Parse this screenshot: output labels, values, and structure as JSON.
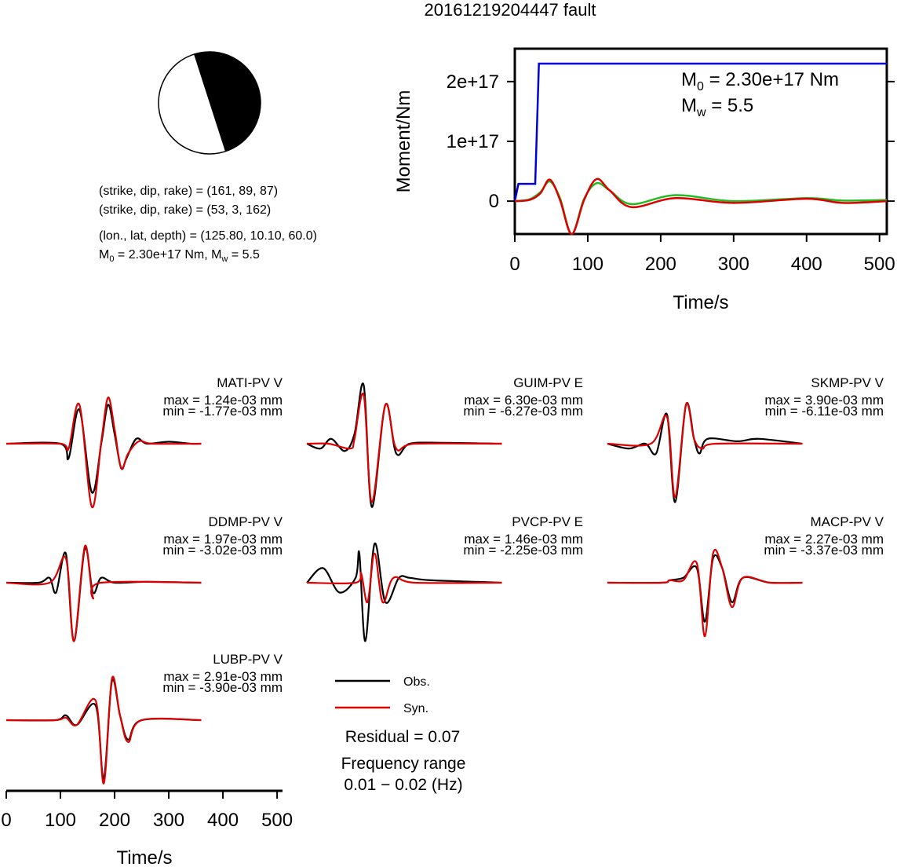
{
  "title": "20161219204447 fault",
  "focal": {
    "line1": "(strike, dip, rake) = (161, 89, 87)",
    "line2": "(strike, dip, rake) = (53, 3, 162)",
    "line3": "(lon., lat, depth) = (125.80, 10.10, 60.0)",
    "m0_prefix": "M",
    "m0_sub": "0",
    "m0_value": " = 2.30e+17 Nm, M",
    "mw_sub": "w",
    "mw_value": " = 5.5"
  },
  "moment_chart": {
    "ylabel": "Moment/Nm",
    "xlabel": "Time/s",
    "m0_prefix": "M",
    "m0_sub": "0",
    "m0_value": " = 2.30e+17 Nm",
    "mw_prefix": "M",
    "mw_sub": "w",
    "mw_value": " = 5.5",
    "yticks": [
      "2e+17",
      "1e+17",
      "0"
    ],
    "xticks": [
      "0",
      "100",
      "200",
      "300",
      "400",
      "500"
    ]
  },
  "chart_data": [
    {
      "type": "line",
      "x_range": [
        0,
        510
      ],
      "y_range": [
        -5.5e+16,
        2.55e+17
      ],
      "series": [
        {
          "color": "#0000dd",
          "x": [
            0,
            5,
            28,
            33,
            510
          ],
          "values": [
            0,
            2.9e+16,
            2.9e+16,
            2.3e+17,
            2.3e+17
          ]
        },
        {
          "color": "#22bb22",
          "x": [
            0,
            20,
            35,
            48,
            62,
            78,
            95,
            112,
            130,
            160,
            220,
            300,
            400,
            450,
            510
          ],
          "values": [
            0,
            3000000000000000.0,
            1.5e+16,
            3.3e+16,
            5000000000000000.0,
            -5.5e+16,
            4000000000000000.0,
            3e+16,
            1.8e+16,
            -5000000000000000.0,
            1e+16,
            0.0,
            5000000000000000.0,
            1000000000000000.0,
            2000000000000000.0
          ]
        },
        {
          "color": "#dd0000",
          "x": [
            0,
            20,
            35,
            48,
            62,
            78,
            95,
            112,
            130,
            160,
            220,
            300,
            400,
            450,
            510
          ],
          "values": [
            0,
            2000000000000000.0,
            1.3e+16,
            3.6e+16,
            2000000000000000.0,
            -5.5e+16,
            2000000000000000.0,
            3.7e+16,
            1.8e+16,
            -1e+16,
            5000000000000000.0,
            -3000000000000000.0,
            4000000000000000.0,
            -3000000000000000.0,
            0.0
          ]
        }
      ]
    },
    {
      "type": "line",
      "xlabel": "Time/s",
      "x_range": [
        0,
        510
      ],
      "xticks": [
        "0",
        "100",
        "200",
        "300",
        "400",
        "500"
      ],
      "stations": [
        {
          "name": "MATI-PV V",
          "max": "max = 1.24e-03 mm",
          "min": "min = -1.77e-03 mm",
          "obs": [
            [
              0,
              0
            ],
            [
              100,
              0
            ],
            [
              115,
              -0.3
            ],
            [
              135,
              0.7
            ],
            [
              158,
              -1.0
            ],
            [
              176,
              0.05
            ],
            [
              188,
              0.8
            ],
            [
              200,
              0.2
            ],
            [
              212,
              -0.5
            ],
            [
              222,
              -0.3
            ],
            [
              240,
              0.1
            ],
            [
              260,
              0
            ],
            [
              300,
              0.04
            ],
            [
              340,
              0
            ],
            [
              360,
              0
            ]
          ],
          "syn": [
            [
              0,
              0
            ],
            [
              100,
              0
            ],
            [
              115,
              -0.1
            ],
            [
              135,
              0.8
            ],
            [
              158,
              -1.3
            ],
            [
              176,
              0.1
            ],
            [
              188,
              0.95
            ],
            [
              200,
              0.3
            ],
            [
              212,
              -0.5
            ],
            [
              225,
              -0.2
            ],
            [
              245,
              0.05
            ],
            [
              270,
              0
            ],
            [
              360,
              0
            ]
          ]
        },
        {
          "name": "GUIM-PV E",
          "max": "max = 6.30e-03 mm",
          "min": "min = -6.27e-03 mm",
          "obs": [
            [
              0,
              0
            ],
            [
              25,
              -0.1
            ],
            [
              45,
              0.1
            ],
            [
              70,
              -0.15
            ],
            [
              88,
              0.2
            ],
            [
              105,
              1.2
            ],
            [
              120,
              -1.3
            ],
            [
              145,
              0.8
            ],
            [
              165,
              -0.2
            ],
            [
              190,
              0
            ],
            [
              250,
              0.02
            ],
            [
              360,
              0
            ]
          ],
          "syn": [
            [
              0,
              0
            ],
            [
              40,
              0
            ],
            [
              80,
              -0.1
            ],
            [
              88,
              0.1
            ],
            [
              105,
              1.0
            ],
            [
              120,
              -1.2
            ],
            [
              145,
              0.8
            ],
            [
              165,
              -0.1
            ],
            [
              200,
              0
            ],
            [
              360,
              0
            ]
          ]
        },
        {
          "name": "SKMP-PV V",
          "max": "max = 3.90e-03 mm",
          "min": "min = -6.11e-03 mm",
          "obs": [
            [
              0,
              0
            ],
            [
              40,
              -0.1
            ],
            [
              70,
              0
            ],
            [
              90,
              -0.2
            ],
            [
              110,
              0.6
            ],
            [
              125,
              -1.2
            ],
            [
              145,
              0.8
            ],
            [
              160,
              0.1
            ],
            [
              170,
              -0.2
            ],
            [
              185,
              0.1
            ],
            [
              240,
              0.05
            ],
            [
              280,
              0.1
            ],
            [
              360,
              0
            ]
          ],
          "syn": [
            [
              0,
              0
            ],
            [
              80,
              0
            ],
            [
              110,
              0.55
            ],
            [
              125,
              -1.1
            ],
            [
              145,
              0.8
            ],
            [
              160,
              0.1
            ],
            [
              175,
              -0.1
            ],
            [
              200,
              0
            ],
            [
              360,
              0
            ]
          ]
        },
        {
          "name": "DDMP-PV V",
          "max": "max = 1.97e-03 mm",
          "min": "min = -3.02e-03 mm",
          "obs": [
            [
              0,
              0
            ],
            [
              60,
              0
            ],
            [
              80,
              0.1
            ],
            [
              92,
              -0.2
            ],
            [
              110,
              0.6
            ],
            [
              125,
              -1.2
            ],
            [
              145,
              0.7
            ],
            [
              160,
              -0.2
            ],
            [
              175,
              0.1
            ],
            [
              200,
              0
            ],
            [
              260,
              0.02
            ],
            [
              360,
              0
            ]
          ],
          "syn": [
            [
              0,
              0
            ],
            [
              80,
              0
            ],
            [
              110,
              0.5
            ],
            [
              125,
              -1.2
            ],
            [
              145,
              0.75
            ],
            [
              160,
              -0.3
            ],
            [
              175,
              0
            ],
            [
              360,
              0
            ]
          ]
        },
        {
          "name": "PVCP-PV E",
          "max": "max = 1.46e-03 mm",
          "min": "min = -2.25e-03 mm",
          "obs": [
            [
              0,
              0
            ],
            [
              30,
              0.3
            ],
            [
              60,
              -0.2
            ],
            [
              90,
              0.1
            ],
            [
              97,
              0.6
            ],
            [
              108,
              -1.2
            ],
            [
              125,
              0.8
            ],
            [
              145,
              -0.4
            ],
            [
              170,
              0.1
            ],
            [
              190,
              0.1
            ],
            [
              230,
              0.05
            ],
            [
              360,
              0
            ]
          ],
          "syn": [
            [
              0,
              0
            ],
            [
              90,
              0
            ],
            [
              100,
              0.2
            ],
            [
              112,
              -0.4
            ],
            [
              125,
              0.6
            ],
            [
              140,
              -0.4
            ],
            [
              160,
              0.1
            ],
            [
              200,
              0
            ],
            [
              360,
              0
            ]
          ]
        },
        {
          "name": "MACP-PV V",
          "max": "max = 2.27e-03 mm",
          "min": "min = -3.37e-03 mm",
          "obs": [
            [
              0,
              0
            ],
            [
              100,
              0
            ],
            [
              115,
              0.05
            ],
            [
              140,
              0.1
            ],
            [
              165,
              0.3
            ],
            [
              180,
              -0.8
            ],
            [
              195,
              0.5
            ],
            [
              212,
              0.3
            ],
            [
              230,
              -0.4
            ],
            [
              250,
              0.1
            ],
            [
              300,
              0
            ],
            [
              360,
              0
            ]
          ],
          "syn": [
            [
              0,
              0
            ],
            [
              100,
              0
            ],
            [
              115,
              0.05
            ],
            [
              140,
              0.05
            ],
            [
              165,
              0.4
            ],
            [
              180,
              -1.1
            ],
            [
              195,
              0.6
            ],
            [
              212,
              0.3
            ],
            [
              230,
              -0.5
            ],
            [
              250,
              0.1
            ],
            [
              300,
              0
            ],
            [
              360,
              0
            ]
          ]
        },
        {
          "name": "LUBP-PV V",
          "max": "max = 2.91e-03 mm",
          "min": "min = -3.90e-03 mm",
          "obs": [
            [
              0,
              0
            ],
            [
              90,
              0
            ],
            [
              110,
              0.1
            ],
            [
              130,
              -0.1
            ],
            [
              165,
              0.3
            ],
            [
              180,
              -1.2
            ],
            [
              195,
              0.8
            ],
            [
              210,
              0.1
            ],
            [
              225,
              -0.4
            ],
            [
              250,
              0
            ],
            [
              360,
              0
            ]
          ],
          "syn": [
            [
              0,
              0
            ],
            [
              90,
              0
            ],
            [
              110,
              0.05
            ],
            [
              130,
              -0.1
            ],
            [
              165,
              0.4
            ],
            [
              180,
              -1.3
            ],
            [
              195,
              0.85
            ],
            [
              210,
              0.1
            ],
            [
              225,
              -0.45
            ],
            [
              250,
              0
            ],
            [
              360,
              0
            ]
          ]
        }
      ]
    }
  ],
  "legend": {
    "obs_label": "Obs.",
    "syn_label": "Syn.",
    "obs_color": "#000000",
    "syn_color": "#dd0000",
    "residual": "Residual = 0.07",
    "freq_label": "Frequency range",
    "freq_value": "0.01 − 0.02 (Hz)"
  }
}
